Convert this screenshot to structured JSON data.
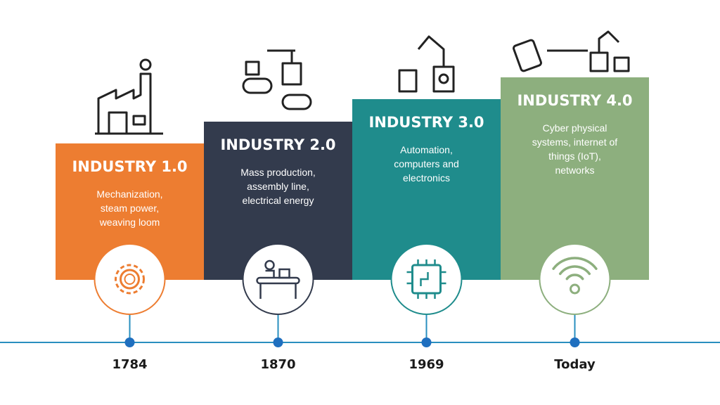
{
  "stages": [
    {
      "title": "INDUSTRY 1.0",
      "description": [
        "Mechanization,",
        "steam power,",
        "weaving loom"
      ],
      "date": "1784"
    },
    {
      "title": "INDUSTRY 2.0",
      "description": [
        "Mass production,",
        "assembly line,",
        "electrical energy"
      ],
      "date": "1870"
    },
    {
      "title": "INDUSTRY 3.0",
      "description": [
        "Automation,",
        "computers and",
        "electronics"
      ],
      "date": "1969"
    },
    {
      "title": "INDUSTRY 4.0",
      "description": [
        "Cyber physical",
        "systems, internet of",
        "things (IoT),",
        "networks"
      ],
      "date": "Today"
    }
  ]
}
